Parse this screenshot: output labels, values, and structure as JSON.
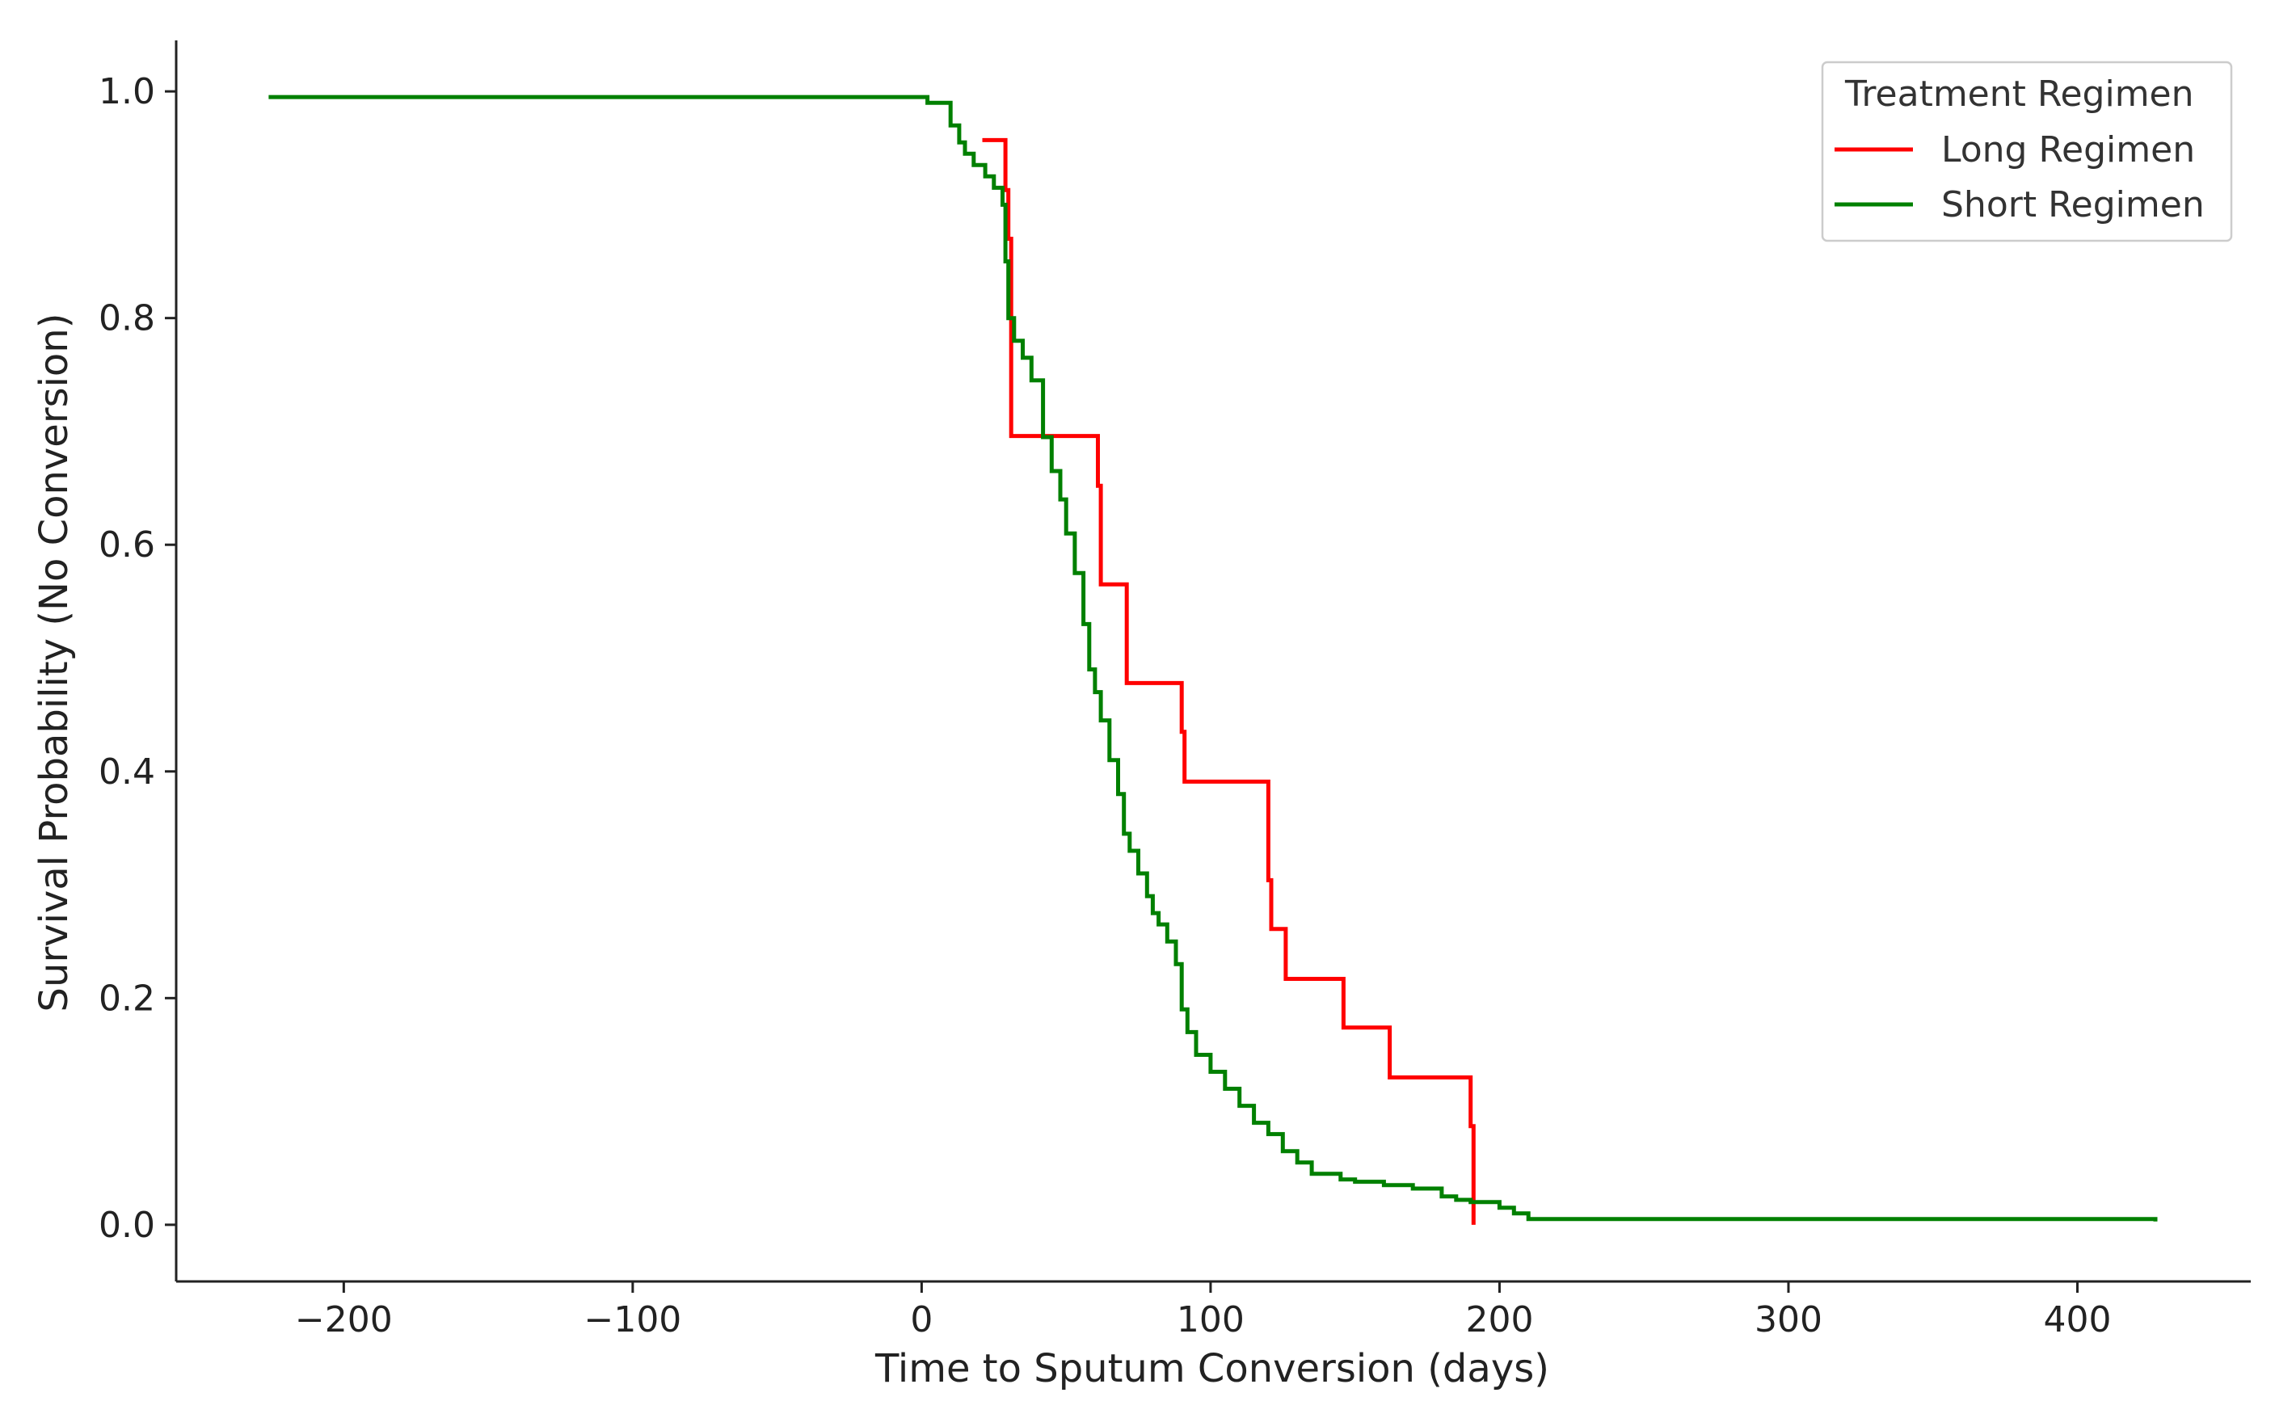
{
  "chart_data": {
    "type": "line",
    "xlabel": "Time to Sputum Conversion (days)",
    "ylabel": "Survival Probability (No Conversion)",
    "xlim": [
      -258,
      460
    ],
    "ylim": [
      -0.05,
      1.045
    ],
    "x_ticks": [
      -200,
      -100,
      0,
      100,
      200,
      300,
      400
    ],
    "x_tick_labels": [
      "−200",
      "−100",
      "0",
      "100",
      "200",
      "300",
      "400"
    ],
    "y_ticks": [
      0.0,
      0.2,
      0.4,
      0.6,
      0.8,
      1.0
    ],
    "y_tick_labels": [
      "0.0",
      "0.2",
      "0.4",
      "0.6",
      "0.8",
      "1.0"
    ],
    "grid": false,
    "step": true,
    "legend": {
      "title": "Treatment Regimen",
      "position": "top-right"
    },
    "series": [
      {
        "name": "Long Regimen",
        "color": "#ff0000",
        "x": [
          21,
          28,
          29,
          30,
          31,
          60,
          61,
          62,
          70,
          71,
          84,
          90,
          91,
          120,
          121,
          126,
          146,
          162,
          190,
          191
        ],
        "y": [
          0.957,
          0.957,
          0.913,
          0.87,
          0.696,
          0.696,
          0.652,
          0.565,
          0.565,
          0.478,
          0.478,
          0.435,
          0.391,
          0.304,
          0.261,
          0.217,
          0.174,
          0.13,
          0.087,
          0.0
        ]
      },
      {
        "name": "Short Regimen",
        "color": "#008000",
        "x": [
          -226,
          2,
          10,
          13,
          15,
          18,
          22,
          25,
          28,
          29,
          30,
          32,
          35,
          38,
          42,
          45,
          48,
          50,
          53,
          56,
          58,
          60,
          62,
          65,
          68,
          70,
          72,
          75,
          78,
          80,
          82,
          85,
          88,
          90,
          92,
          95,
          100,
          105,
          110,
          115,
          120,
          125,
          130,
          135,
          140,
          145,
          150,
          160,
          170,
          180,
          185,
          190,
          200,
          205,
          210,
          427
        ],
        "y": [
          0.995,
          0.99,
          0.97,
          0.955,
          0.945,
          0.935,
          0.925,
          0.915,
          0.9,
          0.85,
          0.8,
          0.78,
          0.765,
          0.745,
          0.695,
          0.665,
          0.64,
          0.61,
          0.575,
          0.53,
          0.49,
          0.47,
          0.445,
          0.41,
          0.38,
          0.345,
          0.33,
          0.31,
          0.29,
          0.275,
          0.265,
          0.25,
          0.23,
          0.19,
          0.17,
          0.15,
          0.135,
          0.12,
          0.105,
          0.09,
          0.08,
          0.065,
          0.055,
          0.045,
          0.045,
          0.04,
          0.038,
          0.035,
          0.032,
          0.025,
          0.022,
          0.02,
          0.015,
          0.01,
          0.005,
          0.003
        ]
      }
    ]
  }
}
